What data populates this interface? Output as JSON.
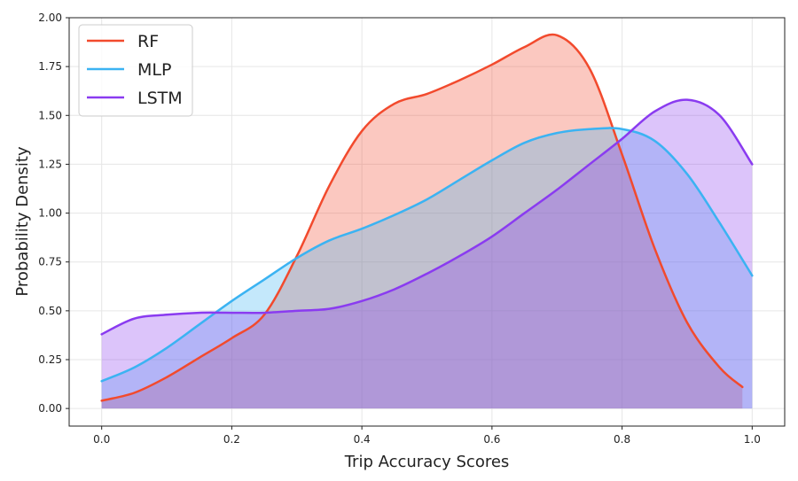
{
  "chart_data": {
    "type": "area",
    "xlabel": "Trip Accuracy Scores",
    "ylabel": "Probability Density",
    "xlim": [
      -0.05,
      1.05
    ],
    "ylim": [
      -0.09,
      2.0
    ],
    "x_ticks": [
      "0.0",
      "0.2",
      "0.4",
      "0.6",
      "0.8",
      "1.0"
    ],
    "y_ticks": [
      "0.00",
      "0.25",
      "0.50",
      "0.75",
      "1.00",
      "1.25",
      "1.50",
      "1.75",
      "2.00"
    ],
    "grid": true,
    "legend_position": "top-left",
    "series": [
      {
        "name": "RF",
        "color": "#f24a2d",
        "fill": "#fbb9a8",
        "x": [
          0.0,
          0.05,
          0.1,
          0.15,
          0.2,
          0.25,
          0.3,
          0.35,
          0.4,
          0.45,
          0.5,
          0.55,
          0.6,
          0.65,
          0.7,
          0.75,
          0.8,
          0.85,
          0.9,
          0.95,
          0.985
        ],
        "values": [
          0.04,
          0.08,
          0.16,
          0.26,
          0.36,
          0.48,
          0.78,
          1.14,
          1.42,
          1.56,
          1.61,
          1.68,
          1.76,
          1.85,
          1.91,
          1.74,
          1.3,
          0.82,
          0.44,
          0.21,
          0.11
        ]
      },
      {
        "name": "MLP",
        "color": "#3bb3f2",
        "fill": "#a4d9f7",
        "x": [
          0.0,
          0.05,
          0.1,
          0.15,
          0.2,
          0.25,
          0.3,
          0.35,
          0.4,
          0.45,
          0.5,
          0.55,
          0.6,
          0.65,
          0.7,
          0.75,
          0.8,
          0.85,
          0.9,
          0.95,
          1.0
        ],
        "values": [
          0.14,
          0.21,
          0.31,
          0.43,
          0.55,
          0.66,
          0.77,
          0.86,
          0.92,
          0.99,
          1.07,
          1.17,
          1.27,
          1.36,
          1.41,
          1.43,
          1.43,
          1.37,
          1.2,
          0.95,
          0.68
        ]
      },
      {
        "name": "LSTM",
        "color": "#8a3bf0",
        "fill": "#c7a6f6",
        "x": [
          0.0,
          0.05,
          0.1,
          0.15,
          0.2,
          0.25,
          0.3,
          0.35,
          0.4,
          0.45,
          0.5,
          0.55,
          0.6,
          0.65,
          0.7,
          0.75,
          0.8,
          0.85,
          0.9,
          0.95,
          1.0
        ],
        "values": [
          0.38,
          0.46,
          0.48,
          0.49,
          0.49,
          0.49,
          0.5,
          0.51,
          0.55,
          0.61,
          0.69,
          0.78,
          0.88,
          1.0,
          1.12,
          1.25,
          1.38,
          1.52,
          1.58,
          1.5,
          1.25
        ]
      }
    ]
  }
}
